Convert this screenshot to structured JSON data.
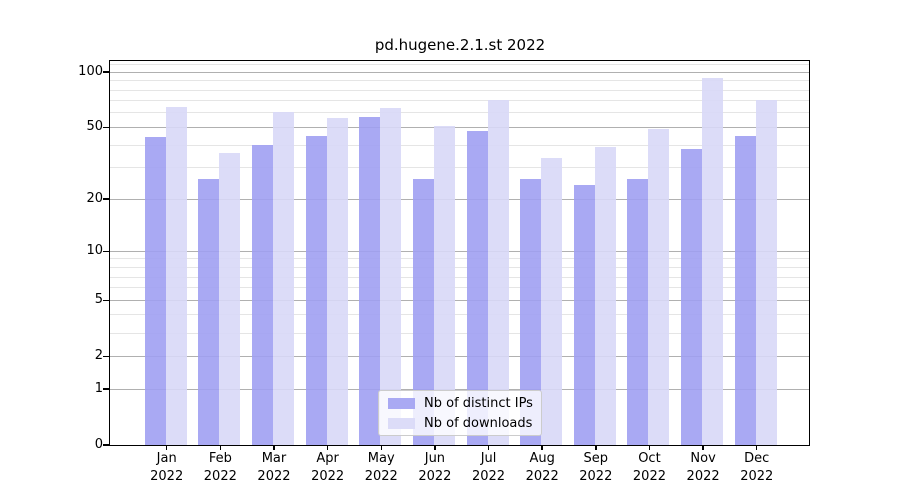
{
  "chart_data": {
    "type": "bar",
    "title": "pd.hugene.2.1.st 2022",
    "categories": [
      "Jan",
      "Feb",
      "Mar",
      "Apr",
      "May",
      "Jun",
      "Jul",
      "Aug",
      "Sep",
      "Oct",
      "Nov",
      "Dec"
    ],
    "x_tick_year": "2022",
    "series": [
      {
        "name": "Nb of distinct IPs",
        "color": "#a0a0f2",
        "opacity": 0.9,
        "values": [
          44,
          26,
          40,
          45,
          57,
          26,
          48,
          26,
          24,
          26,
          38,
          45
        ]
      },
      {
        "name": "Nb of downloads",
        "color": "#d8d8f7",
        "opacity": 0.9,
        "values": [
          65,
          36,
          61,
          56,
          64,
          51,
          71,
          34,
          39,
          49,
          93,
          71
        ]
      }
    ],
    "yscale": "log1p",
    "ylim": [
      0,
      115
    ],
    "y_tick_values": [
      0,
      1,
      2,
      5,
      10,
      20,
      50,
      100
    ],
    "y_tick_labels": [
      "0",
      "1",
      "2",
      "5",
      "10",
      "20",
      "50",
      "100"
    ],
    "y_minor_gridlines": [
      3,
      4,
      6,
      7,
      8,
      9,
      30,
      40,
      60,
      70,
      80,
      90,
      110
    ],
    "grid": true,
    "legend_position": "lower center",
    "colors": {
      "grid_major": "#b0b0b0",
      "grid_minor": "#e5e5e5",
      "spine": "#000000",
      "legend_border": "#cccccc",
      "text": "#000000"
    }
  }
}
